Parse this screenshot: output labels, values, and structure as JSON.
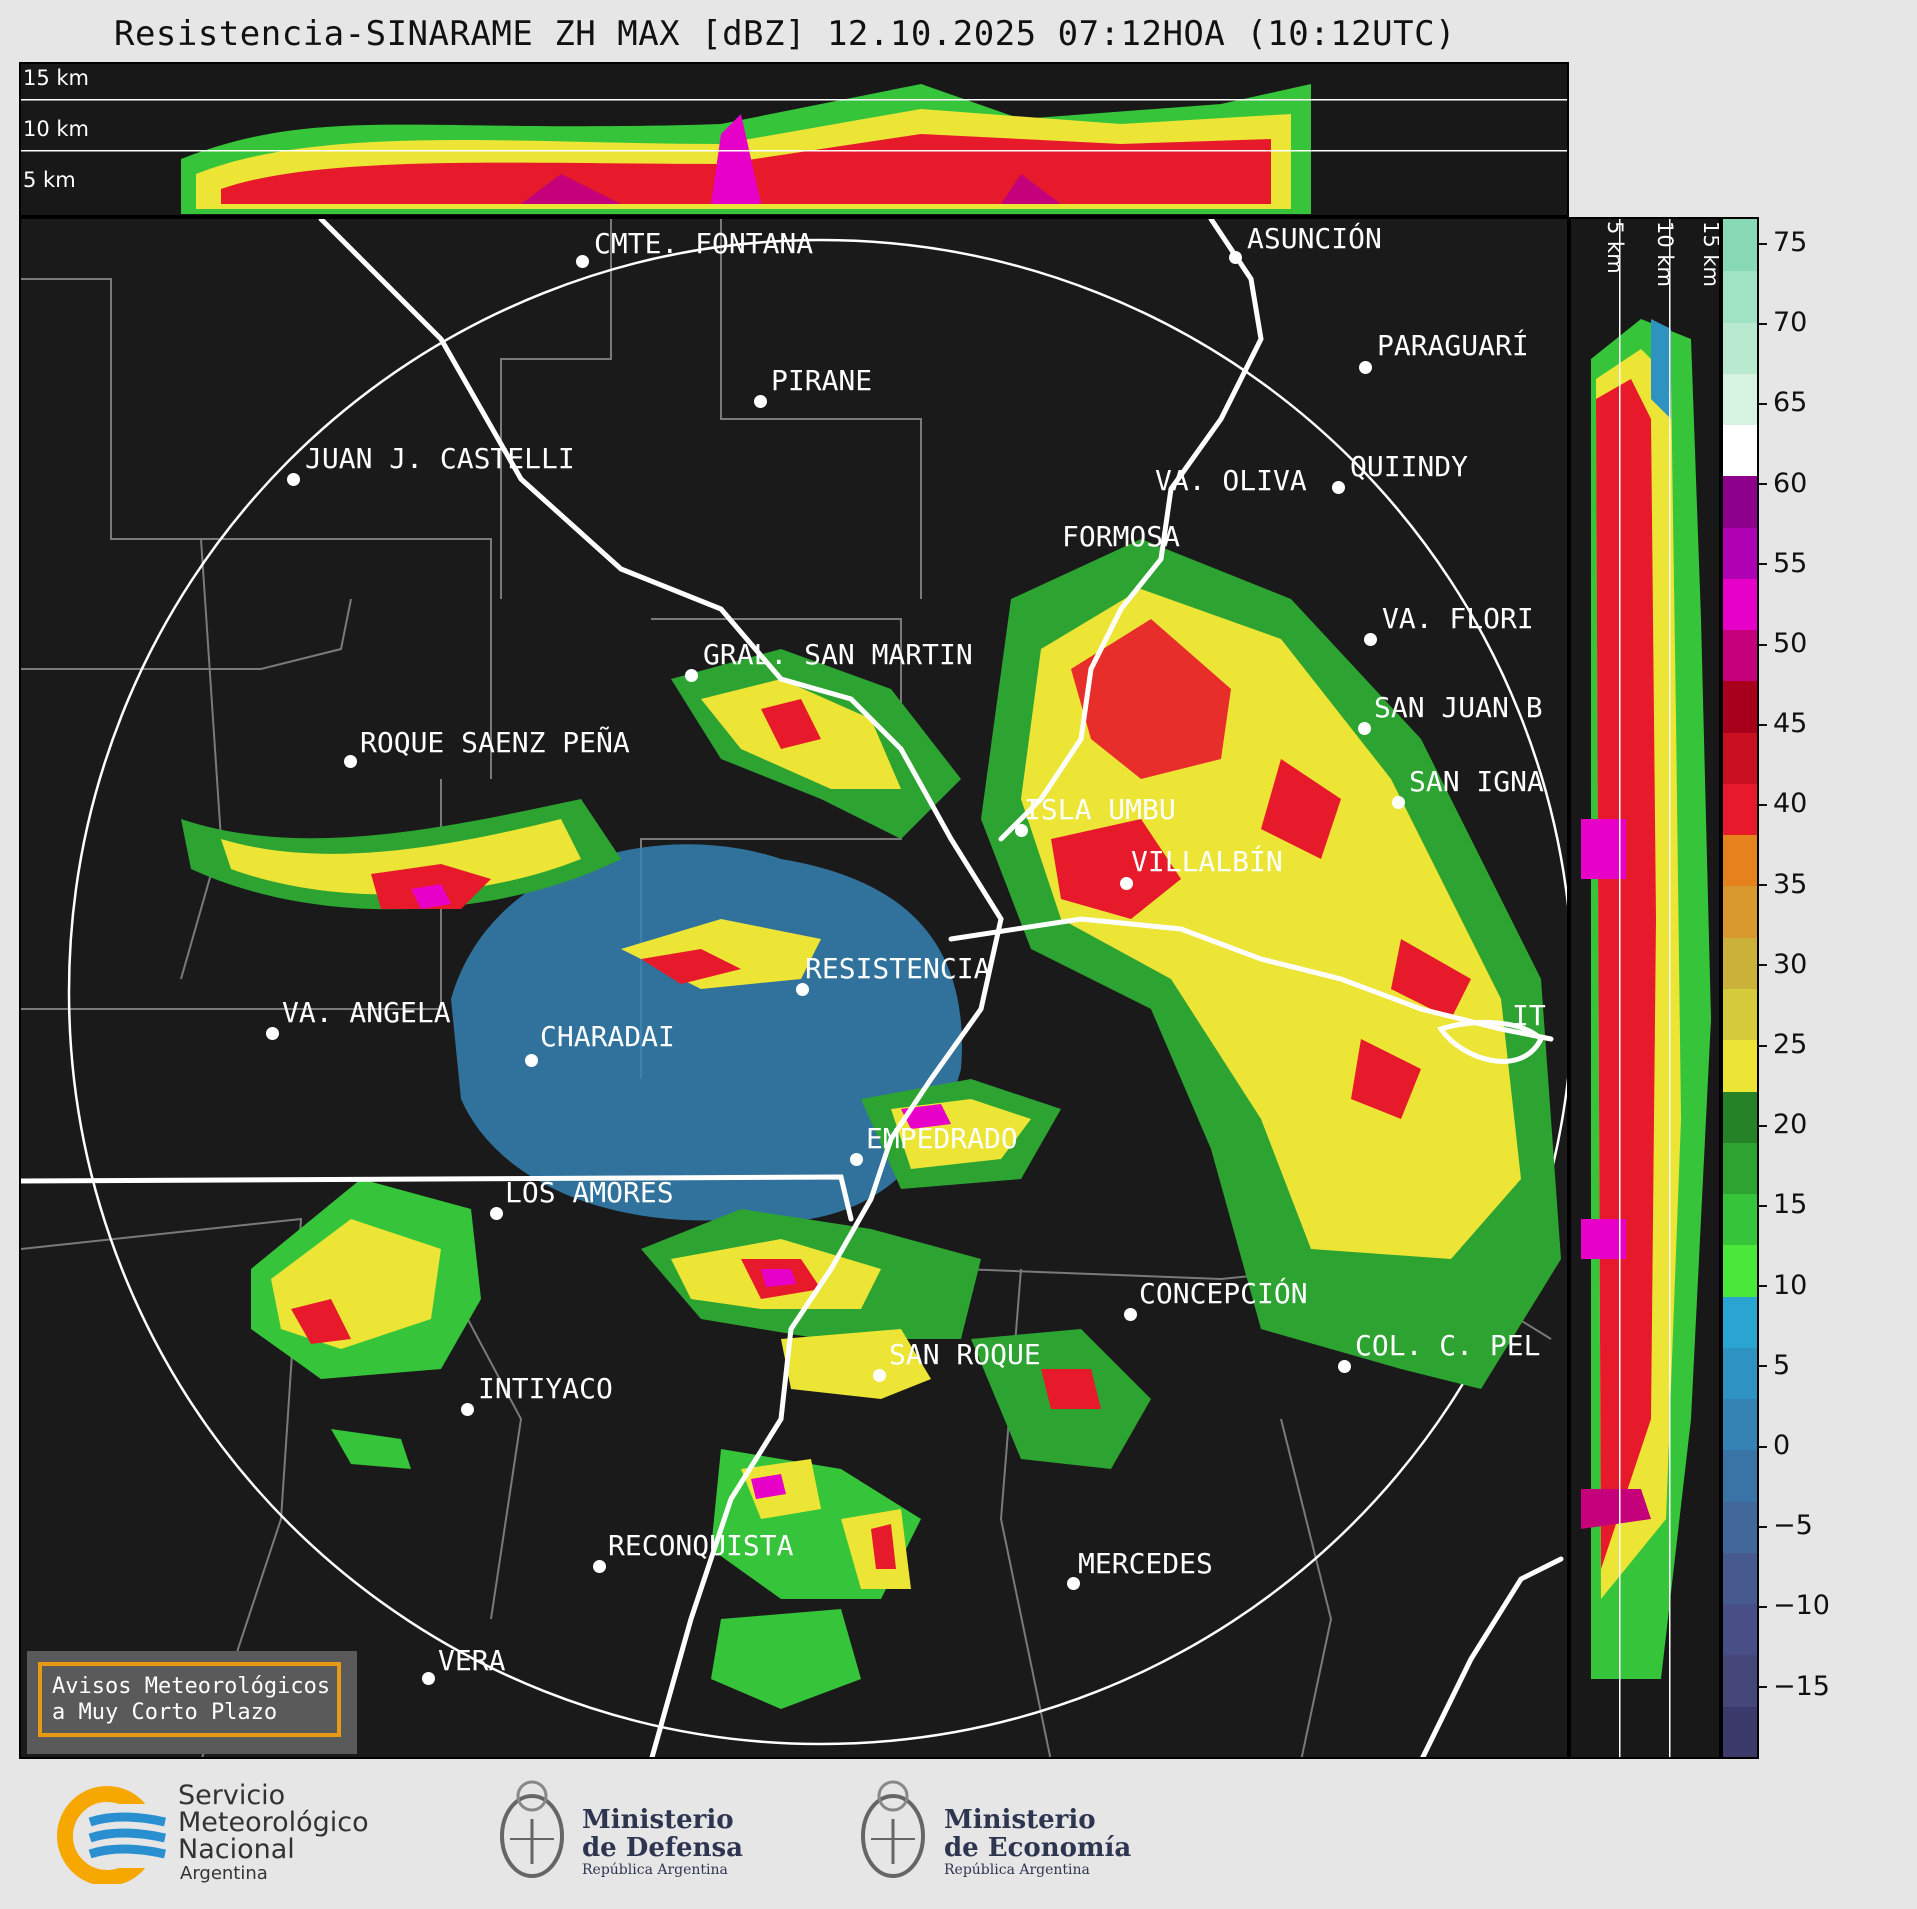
{
  "title": "Resistencia-SINARAME ZH MAX [dBZ] 12.10.2025 07:12HOA (10:12UTC)",
  "top_panel": {
    "alt_labels": [
      "15 km",
      "10 km",
      "5 km"
    ]
  },
  "side_panel": {
    "alt_labels": [
      "5 km",
      "10 km",
      "15 km"
    ]
  },
  "colorbar": {
    "ticks": [
      "75",
      "70",
      "65",
      "60",
      "55",
      "50",
      "45",
      "40",
      "35",
      "30",
      "25",
      "20",
      "15",
      "10",
      "5",
      "0",
      "−5",
      "−10",
      "−15"
    ],
    "colors": [
      "#3c3a6b",
      "#45477a",
      "#474f86",
      "#465a90",
      "#41679b",
      "#3a74a6",
      "#3583b4",
      "#2f93c2",
      "#2aa4d0",
      "#4ae83a",
      "#36c43a",
      "#2da332",
      "#258227",
      "#ede536",
      "#d3cb3a",
      "#c9b13a",
      "#d8982e",
      "#e5821e",
      "#e61a2a",
      "#c81020",
      "#a8001c",
      "#c4007a",
      "#e600c8",
      "#b000b4",
      "#8c008c",
      "#ffffff",
      "#d6f2e0",
      "#b9ead0",
      "#9fe2c4",
      "#86d9b4"
    ]
  },
  "cities": [
    {
      "name": "CMTE. FONTANA"
    },
    {
      "name": "ASUNCIÓN"
    },
    {
      "name": "PARAGUARÍ"
    },
    {
      "name": "PIRANE"
    },
    {
      "name": "JUAN J. CASTELLI"
    },
    {
      "name": "VA. OLIVA"
    },
    {
      "name": "QUIINDY"
    },
    {
      "name": "FORMOSA"
    },
    {
      "name": "VA. FLORI"
    },
    {
      "name": "GRAL. SAN MARTIN"
    },
    {
      "name": "SAN JUAN B"
    },
    {
      "name": "ROQUE SAENZ PEÑA"
    },
    {
      "name": "SAN IGNA"
    },
    {
      "name": "ISLA UMBU"
    },
    {
      "name": "VILLALBÍN"
    },
    {
      "name": "RESISTENCIA"
    },
    {
      "name": "VA. ANGELA"
    },
    {
      "name": "CHARADAI"
    },
    {
      "name": "IT"
    },
    {
      "name": "EMPEDRADO"
    },
    {
      "name": "LOS AMORES"
    },
    {
      "name": "CONCEPCIÓN"
    },
    {
      "name": "COL. C. PEL"
    },
    {
      "name": "SAN ROQUE"
    },
    {
      "name": "INTIYACO"
    },
    {
      "name": "RECONQUISTA"
    },
    {
      "name": "MERCEDES"
    },
    {
      "name": "VERA"
    }
  ],
  "avisos": {
    "line1": "Avisos Meteorológicos",
    "line2": "a Muy Corto Plazo"
  },
  "footer": {
    "smn": {
      "line1": "Servicio",
      "line2": "Meteorológico",
      "line3": "Nacional",
      "line4": "Argentina"
    },
    "defensa": {
      "line1": "Ministerio",
      "line2": "de Defensa",
      "line3": "República Argentina"
    },
    "economia": {
      "line1": "Ministerio",
      "line2": "de Economía",
      "line3": "República Argentina"
    }
  }
}
